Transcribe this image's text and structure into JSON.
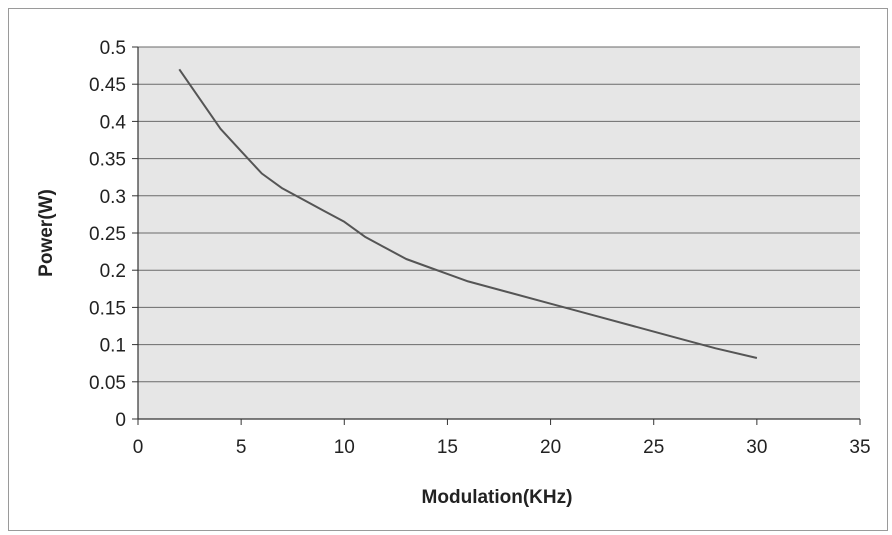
{
  "chart_data": {
    "type": "line",
    "title": "",
    "xlabel": "Modulation(KHz)",
    "ylabel": "Power(W)",
    "xlim": [
      0,
      35
    ],
    "ylim": [
      0,
      0.5
    ],
    "x_ticks": [
      0,
      5,
      10,
      15,
      20,
      25,
      30,
      35
    ],
    "y_ticks": [
      0,
      0.05,
      0.1,
      0.15,
      0.2,
      0.25,
      0.3,
      0.35,
      0.4,
      0.45,
      0.5
    ],
    "grid": "horizontal",
    "legend": "none",
    "plot_background": "#e6e6e6",
    "line_color": "#555555",
    "series": [
      {
        "x": [
          2,
          3,
          4,
          5,
          6,
          7,
          8,
          9,
          10,
          11,
          12,
          13,
          14,
          15,
          16,
          18,
          20,
          22,
          24,
          26,
          28,
          30
        ],
        "y": [
          0.47,
          0.43,
          0.39,
          0.36,
          0.33,
          0.31,
          0.295,
          0.28,
          0.265,
          0.245,
          0.23,
          0.215,
          0.205,
          0.195,
          0.185,
          0.17,
          0.155,
          0.14,
          0.125,
          0.11,
          0.095,
          0.082
        ]
      }
    ]
  }
}
